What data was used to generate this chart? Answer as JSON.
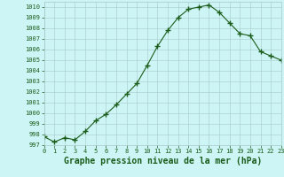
{
  "x": [
    0,
    1,
    2,
    3,
    4,
    5,
    6,
    7,
    8,
    9,
    10,
    11,
    12,
    13,
    14,
    15,
    16,
    17,
    18,
    19,
    20,
    21,
    22,
    23
  ],
  "y": [
    997.8,
    997.3,
    997.7,
    997.5,
    998.3,
    999.3,
    999.9,
    1000.8,
    1001.8,
    1002.8,
    1004.5,
    1006.3,
    1007.8,
    1009.0,
    1009.8,
    1010.0,
    1010.2,
    1009.5,
    1008.5,
    1007.5,
    1007.3,
    1005.8,
    1005.4,
    1005.0
  ],
  "line_color": "#1a5c1a",
  "marker": "+",
  "marker_size": 4,
  "marker_linewidth": 1.0,
  "bg_color": "#cef5f5",
  "grid_color": "#a8c8c8",
  "xlabel": "Graphe pression niveau de la mer (hPa)",
  "xlim": [
    0,
    23
  ],
  "ylim": [
    997,
    1010.5
  ],
  "yticks": [
    997,
    998,
    999,
    1000,
    1001,
    1002,
    1003,
    1004,
    1005,
    1006,
    1007,
    1008,
    1009,
    1010
  ],
  "xticks": [
    0,
    1,
    2,
    3,
    4,
    5,
    6,
    7,
    8,
    9,
    10,
    11,
    12,
    13,
    14,
    15,
    16,
    17,
    18,
    19,
    20,
    21,
    22,
    23
  ],
  "tick_fontsize": 5.0,
  "xlabel_fontsize": 7.0,
  "linewidth": 0.8
}
